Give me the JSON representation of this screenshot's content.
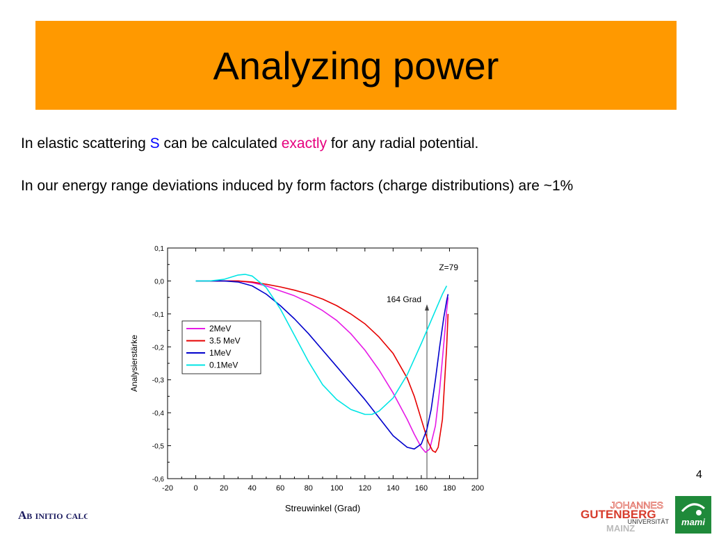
{
  "slide": {
    "title": "Analyzing power",
    "line1": {
      "part1": "In elastic scattering ",
      "highlight1": "S",
      "part2": " can be calculated ",
      "highlight2": "exactly",
      "part3": " for any  radial potential."
    },
    "line2": "In our energy range deviations induced by form factors (charge distributions) are ~1%",
    "page_number": "4",
    "footer_text": "Ab initio calculations",
    "logo_text": {
      "johannes": "JOHANNES",
      "gutenberg": "GUTENBERG",
      "universitat": "UNIVERSITÄT",
      "mainz": "MAINZ",
      "mami": "mami"
    },
    "colors": {
      "banner": "#ff9900",
      "highlight_blue": "#0000ff",
      "highlight_pink": "#e6007e"
    }
  },
  "chart_data": {
    "type": "line",
    "title": "",
    "xlabel": "Streuwinkel (Grad)",
    "ylabel": "Analysierstärke",
    "xlim": [
      -20,
      200
    ],
    "ylim": [
      -0.6,
      0.1
    ],
    "x_ticks": [
      "-20",
      "0",
      "20",
      "40",
      "60",
      "80",
      "100",
      "120",
      "140",
      "160",
      "180",
      "200"
    ],
    "y_ticks": [
      "0,1",
      "0,0",
      "-0,1",
      "-0,2",
      "-0,3",
      "-0,4",
      "-0,5",
      "-0,6"
    ],
    "grid": false,
    "legend_position": "left",
    "annotations": [
      {
        "text": "Z=79",
        "position": "top-right"
      },
      {
        "text": "164 Grad",
        "x": 164
      }
    ],
    "series": [
      {
        "name": "2MeV",
        "color": "#e619e6",
        "x": [
          0,
          10,
          20,
          30,
          40,
          50,
          60,
          70,
          80,
          90,
          100,
          110,
          120,
          130,
          140,
          150,
          155,
          160,
          163,
          166,
          170,
          173,
          176,
          178,
          179
        ],
        "y": [
          0.0,
          0.0,
          0.0,
          0.0,
          -0.005,
          -0.015,
          -0.03,
          -0.045,
          -0.065,
          -0.09,
          -0.12,
          -0.16,
          -0.21,
          -0.27,
          -0.34,
          -0.42,
          -0.465,
          -0.505,
          -0.52,
          -0.51,
          -0.44,
          -0.33,
          -0.19,
          -0.09,
          -0.05
        ]
      },
      {
        "name": "3.5 MeV",
        "color": "#e60000",
        "x": [
          0,
          10,
          20,
          30,
          40,
          50,
          60,
          70,
          80,
          90,
          100,
          110,
          120,
          130,
          140,
          150,
          155,
          160,
          165,
          168,
          170,
          172,
          175,
          178,
          179
        ],
        "y": [
          0.0,
          0.0,
          0.0,
          0.0,
          -0.003,
          -0.01,
          -0.018,
          -0.028,
          -0.04,
          -0.055,
          -0.075,
          -0.1,
          -0.13,
          -0.17,
          -0.22,
          -0.295,
          -0.35,
          -0.42,
          -0.49,
          -0.515,
          -0.52,
          -0.505,
          -0.42,
          -0.2,
          -0.1
        ]
      },
      {
        "name": "1MeV",
        "color": "#0000cc",
        "x": [
          0,
          10,
          20,
          30,
          40,
          50,
          60,
          70,
          80,
          90,
          100,
          110,
          120,
          130,
          140,
          150,
          155,
          160,
          164,
          167,
          170,
          173,
          176,
          178,
          179
        ],
        "y": [
          0.0,
          0.0,
          0.0,
          -0.003,
          -0.015,
          -0.04,
          -0.075,
          -0.115,
          -0.16,
          -0.21,
          -0.26,
          -0.31,
          -0.36,
          -0.415,
          -0.47,
          -0.505,
          -0.51,
          -0.495,
          -0.45,
          -0.39,
          -0.3,
          -0.2,
          -0.11,
          -0.06,
          -0.04
        ]
      },
      {
        "name": "0.1MeV",
        "color": "#00e5e5",
        "x": [
          0,
          10,
          20,
          30,
          35,
          40,
          50,
          60,
          70,
          80,
          90,
          100,
          110,
          120,
          125,
          130,
          140,
          150,
          160,
          170,
          175,
          178
        ],
        "y": [
          0.0,
          0.0,
          0.005,
          0.018,
          0.02,
          0.015,
          -0.02,
          -0.085,
          -0.165,
          -0.245,
          -0.315,
          -0.36,
          -0.39,
          -0.405,
          -0.405,
          -0.395,
          -0.355,
          -0.285,
          -0.19,
          -0.09,
          -0.04,
          -0.015
        ]
      }
    ]
  }
}
